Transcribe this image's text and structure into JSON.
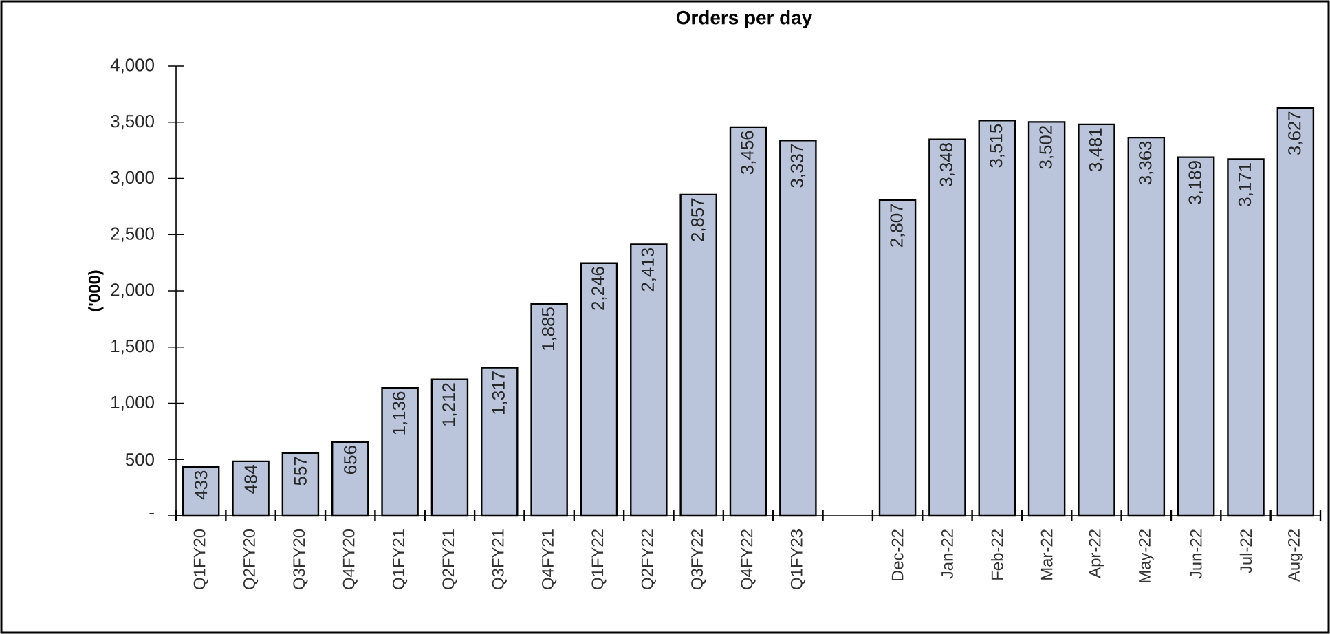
{
  "chart_data": {
    "type": "bar",
    "title": "Orders per day",
    "ylabel": "('000)",
    "categories": [
      "Q1FY20",
      "Q2FY20",
      "Q3FY20",
      "Q4FY20",
      "Q1FY21",
      "Q2FY21",
      "Q3FY21",
      "Q4FY21",
      "Q1FY22",
      "Q2FY22",
      "Q3FY22",
      "Q4FY22",
      "Q1FY23",
      null,
      "Dec-22",
      "Jan-22",
      "Feb-22",
      "Mar-22",
      "Apr-22",
      "May-22",
      "Jun-22",
      "Jul-22",
      "Aug-22"
    ],
    "values": [
      433,
      484,
      557,
      656,
      1136,
      1212,
      1317,
      1885,
      2246,
      2413,
      2857,
      3456,
      3337,
      null,
      2807,
      3348,
      3515,
      3502,
      3481,
      3363,
      3189,
      3171,
      3627
    ],
    "value_labels": [
      "433",
      "484",
      "557",
      "656",
      "1,136",
      "1,212",
      "1,317",
      "1,885",
      "2,246",
      "2,413",
      "2,857",
      "3,456",
      "3,337",
      null,
      "2,807",
      "3,348",
      "3,515",
      "3,502",
      "3,481",
      "3,363",
      "3,189",
      "3,171",
      "3,627"
    ],
    "color": "#bac4da",
    "ylim": [
      0,
      4000
    ],
    "yticks": [
      {
        "value": 0,
        "label": "-"
      },
      {
        "value": 500,
        "label": "500"
      },
      {
        "value": 1000,
        "label": "1,000"
      },
      {
        "value": 1500,
        "label": "1,500"
      },
      {
        "value": 2000,
        "label": "2,000"
      },
      {
        "value": 2500,
        "label": "2,500"
      },
      {
        "value": 3000,
        "label": "3,000"
      },
      {
        "value": 3500,
        "label": "3,500"
      },
      {
        "value": 4000,
        "label": "4,000"
      }
    ],
    "grid": false
  }
}
